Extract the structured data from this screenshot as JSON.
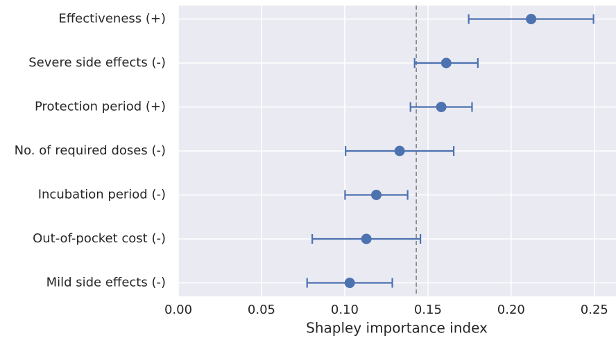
{
  "chart_data": {
    "type": "pointrange",
    "xlabel": "Shapley importance index",
    "categories": [
      "Effectiveness (+)",
      "Severe side effects (-)",
      "Protection period (+)",
      "No. of required doses (-)",
      "Incubation period (-)",
      "Out-of-pocket cost (-)",
      "Mild side effects (-)"
    ],
    "values": [
      0.212,
      0.161,
      0.158,
      0.133,
      0.119,
      0.113,
      0.103
    ],
    "errors": [
      0.0375,
      0.019,
      0.0185,
      0.0325,
      0.0188,
      0.0325,
      0.0256
    ],
    "color": "#4c72b0",
    "reference_line": 0.143,
    "xlim": [
      0,
      0.263
    ],
    "xticks": [
      {
        "value": 0,
        "label": "0.00"
      },
      0.05,
      {
        "value": 0.1,
        "label": "0.10"
      },
      0.15,
      {
        "value": 0.2,
        "label": "0.20"
      },
      0.25
    ],
    "grid": true
  }
}
